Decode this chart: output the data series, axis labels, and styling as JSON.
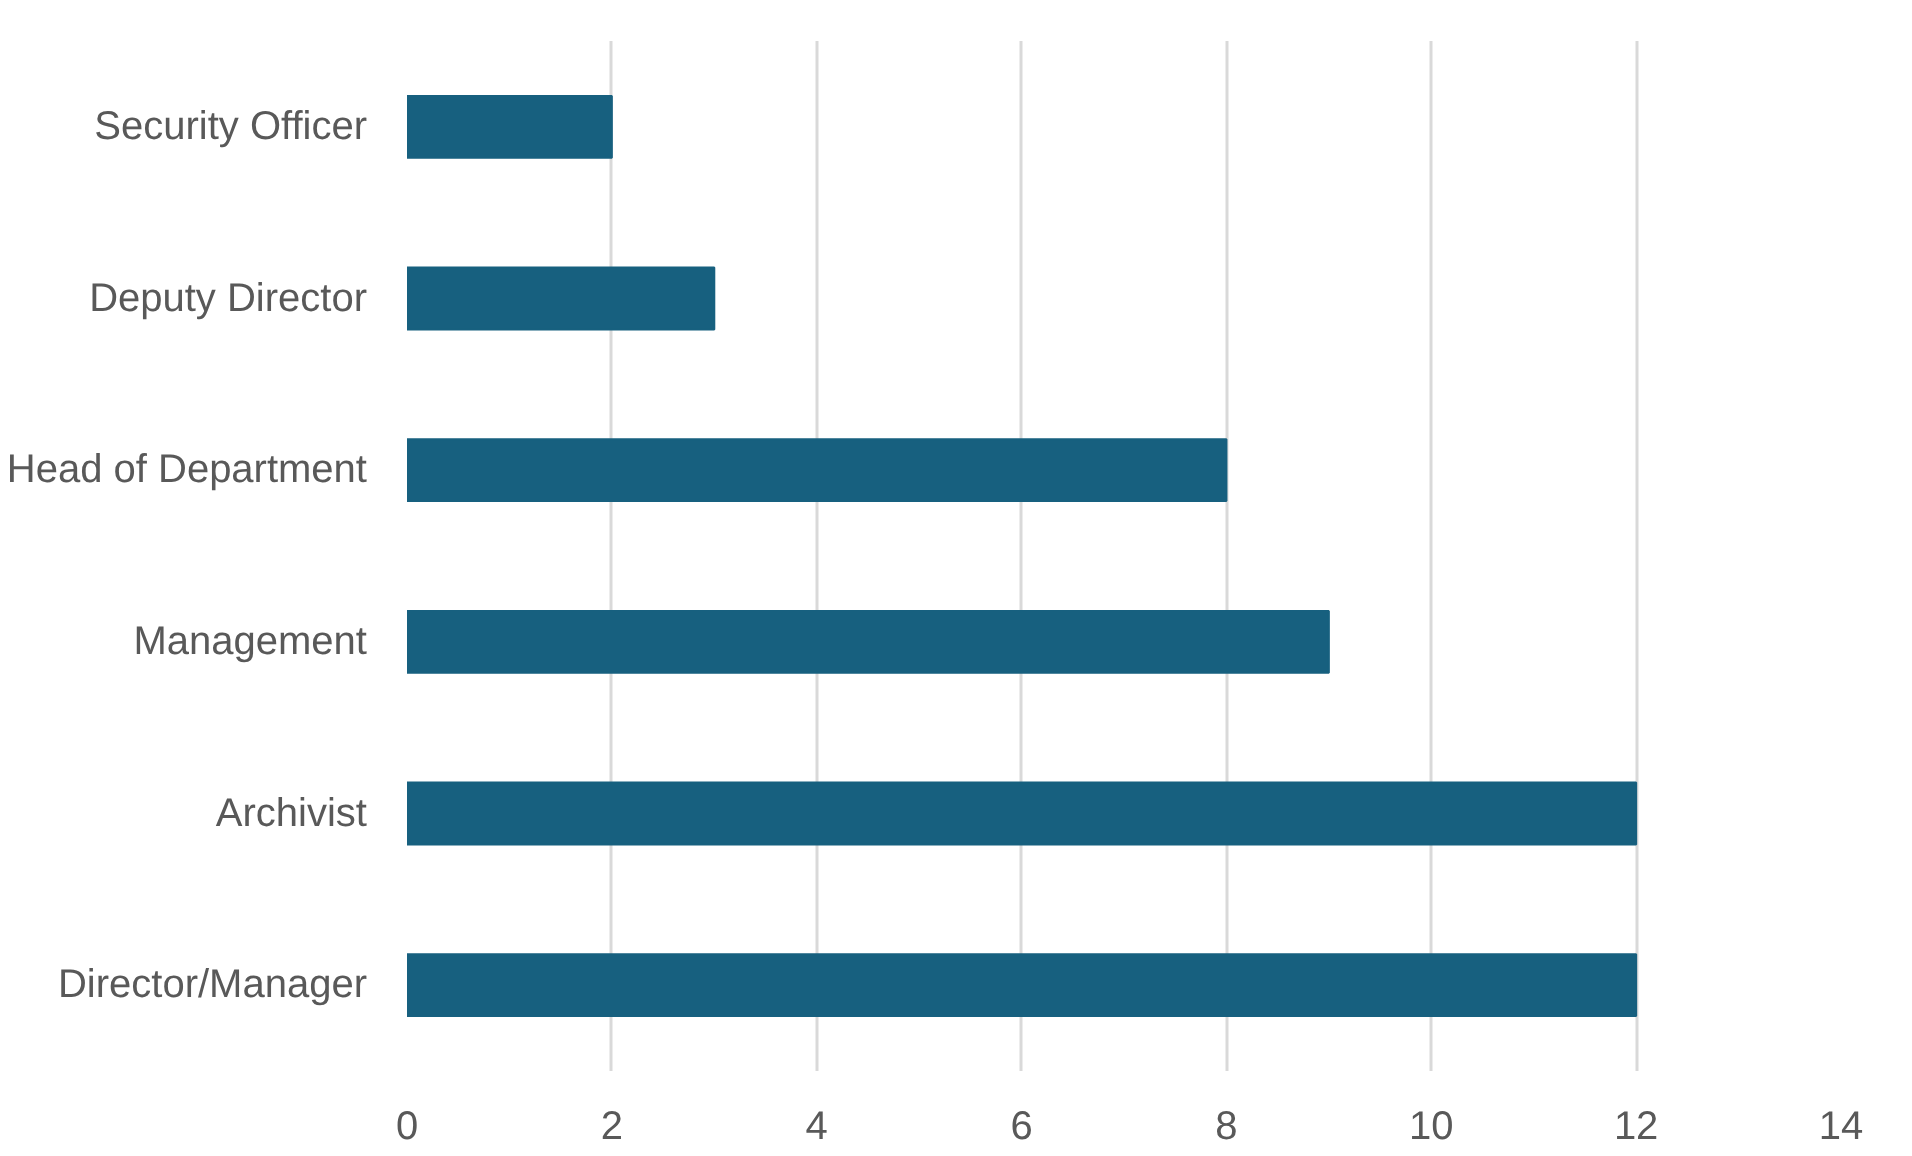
{
  "chart_data": {
    "type": "bar",
    "orientation": "horizontal",
    "categories": [
      "Security Officer",
      "Deputy Director",
      "Head of Department",
      "Management",
      "Archivist",
      "Director/Manager"
    ],
    "values": [
      2,
      3,
      8,
      9,
      12,
      12
    ],
    "color": "#17607f",
    "xlim": [
      0,
      14
    ],
    "xticks": [
      0,
      2,
      4,
      6,
      8,
      10,
      12,
      14
    ],
    "grid": "x"
  }
}
